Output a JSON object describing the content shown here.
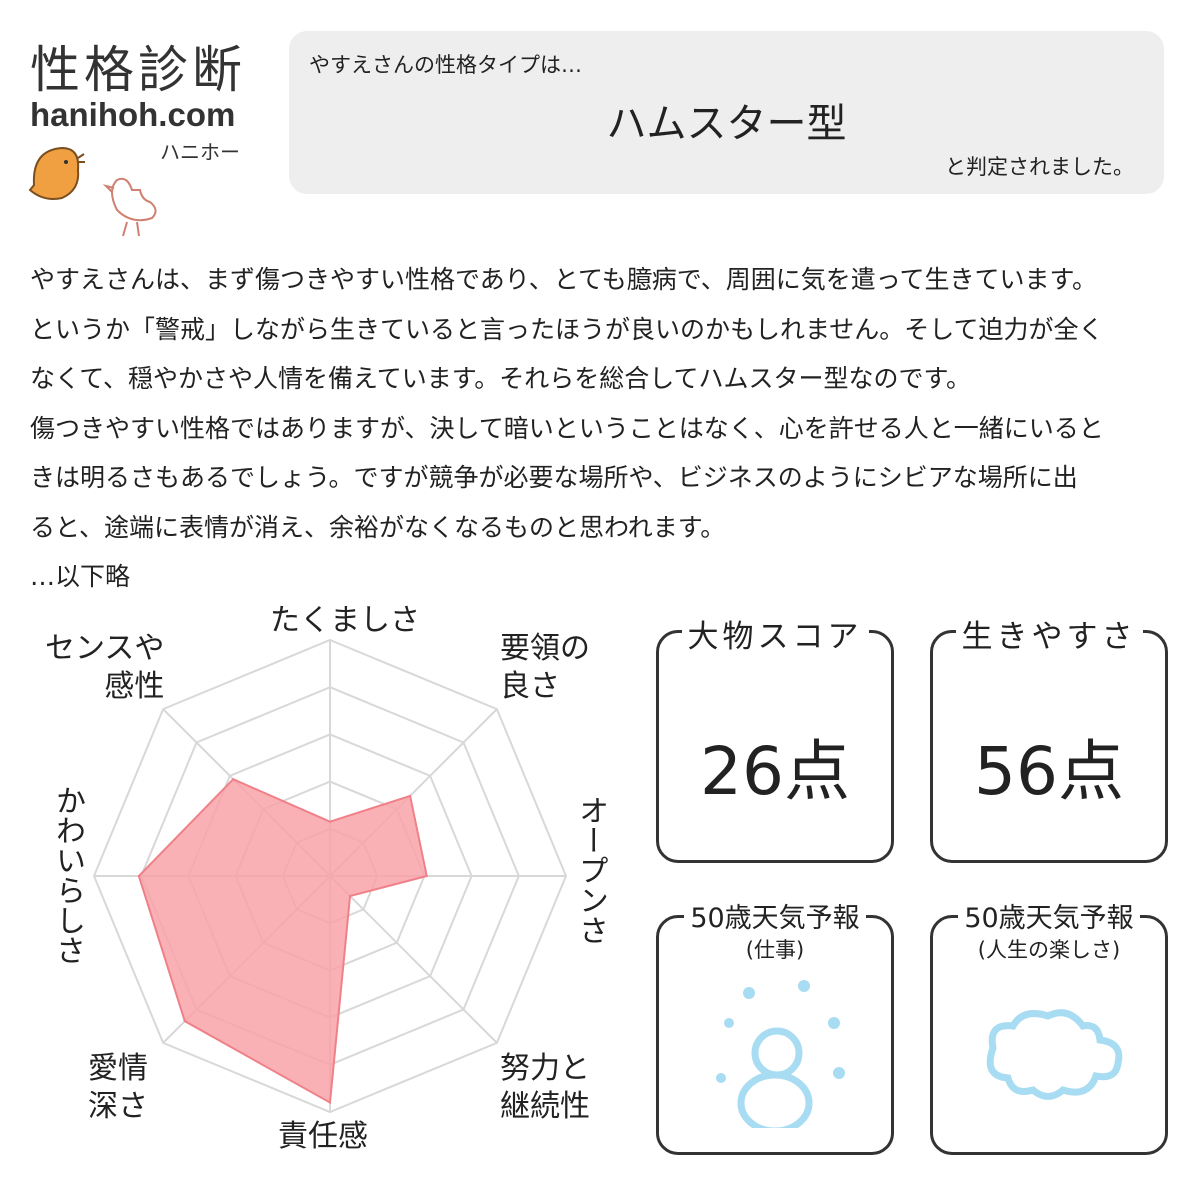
{
  "logo": {
    "title": "性格診断",
    "url": "hanihoh.com",
    "kana": "ハニホー"
  },
  "result": {
    "intro": "やすえさんの性格タイプは…",
    "type": "ハムスター型",
    "outro": "と判定されました。"
  },
  "body_lines": [
    "やすえさんは、まず傷つきやすい性格であり、とても臆病で、周囲に気を遣って生きています。",
    "というか「警戒」しながら生きていると言ったほうが良いのかもしれません。そして迫力が全く",
    "なくて、穏やかさや人情を備えています。それらを総合してハムスター型なのです。",
    "傷つきやすい性格ではありますが、決して暗いということはなく、心を許せる人と一緒にいると",
    "きは明るさもあるでしょう。ですが競争が必要な場所や、ビジネスのようにシビアな場所に出",
    "ると、途端に表情が消え、余裕がなくなるものと思われます。",
    "…以下略"
  ],
  "chart_data": {
    "type": "radar",
    "categories": [
      "たくましさ",
      "要領の良さ",
      "オープンさ",
      "努力と継続性",
      "責任感",
      "愛情深さ",
      "かわいらしさ",
      "センスや感性"
    ],
    "values": [
      1.15,
      2.4,
      2.05,
      0.6,
      4.8,
      4.35,
      4.05,
      2.9
    ],
    "rlim": [
      0,
      5
    ],
    "rings": 5,
    "fill_color": "#f9a3a8",
    "line_color": "#f08088",
    "grid_color": "#d8d8d8"
  },
  "labels": {
    "tough": "たくましさ",
    "savvy1": "要領の",
    "savvy2": "良さ",
    "open": "オープンさ",
    "effort1": "努力と",
    "effort2": "継続性",
    "resp": "責任感",
    "love1": "愛情",
    "love2": "深さ",
    "cute": "かわいらしさ",
    "sense1": "センスや",
    "sense2": "感性"
  },
  "scores": [
    {
      "title": "大物スコア",
      "value": "26点"
    },
    {
      "title": "生きやすさ",
      "value": "56点"
    }
  ],
  "forecasts": [
    {
      "title": "50歳天気予報",
      "sub": "(仕事)",
      "icon": "snowman-icon"
    },
    {
      "title": "50歳天気予報",
      "sub": "(人生の楽しさ)",
      "icon": "cloud-icon"
    }
  ]
}
